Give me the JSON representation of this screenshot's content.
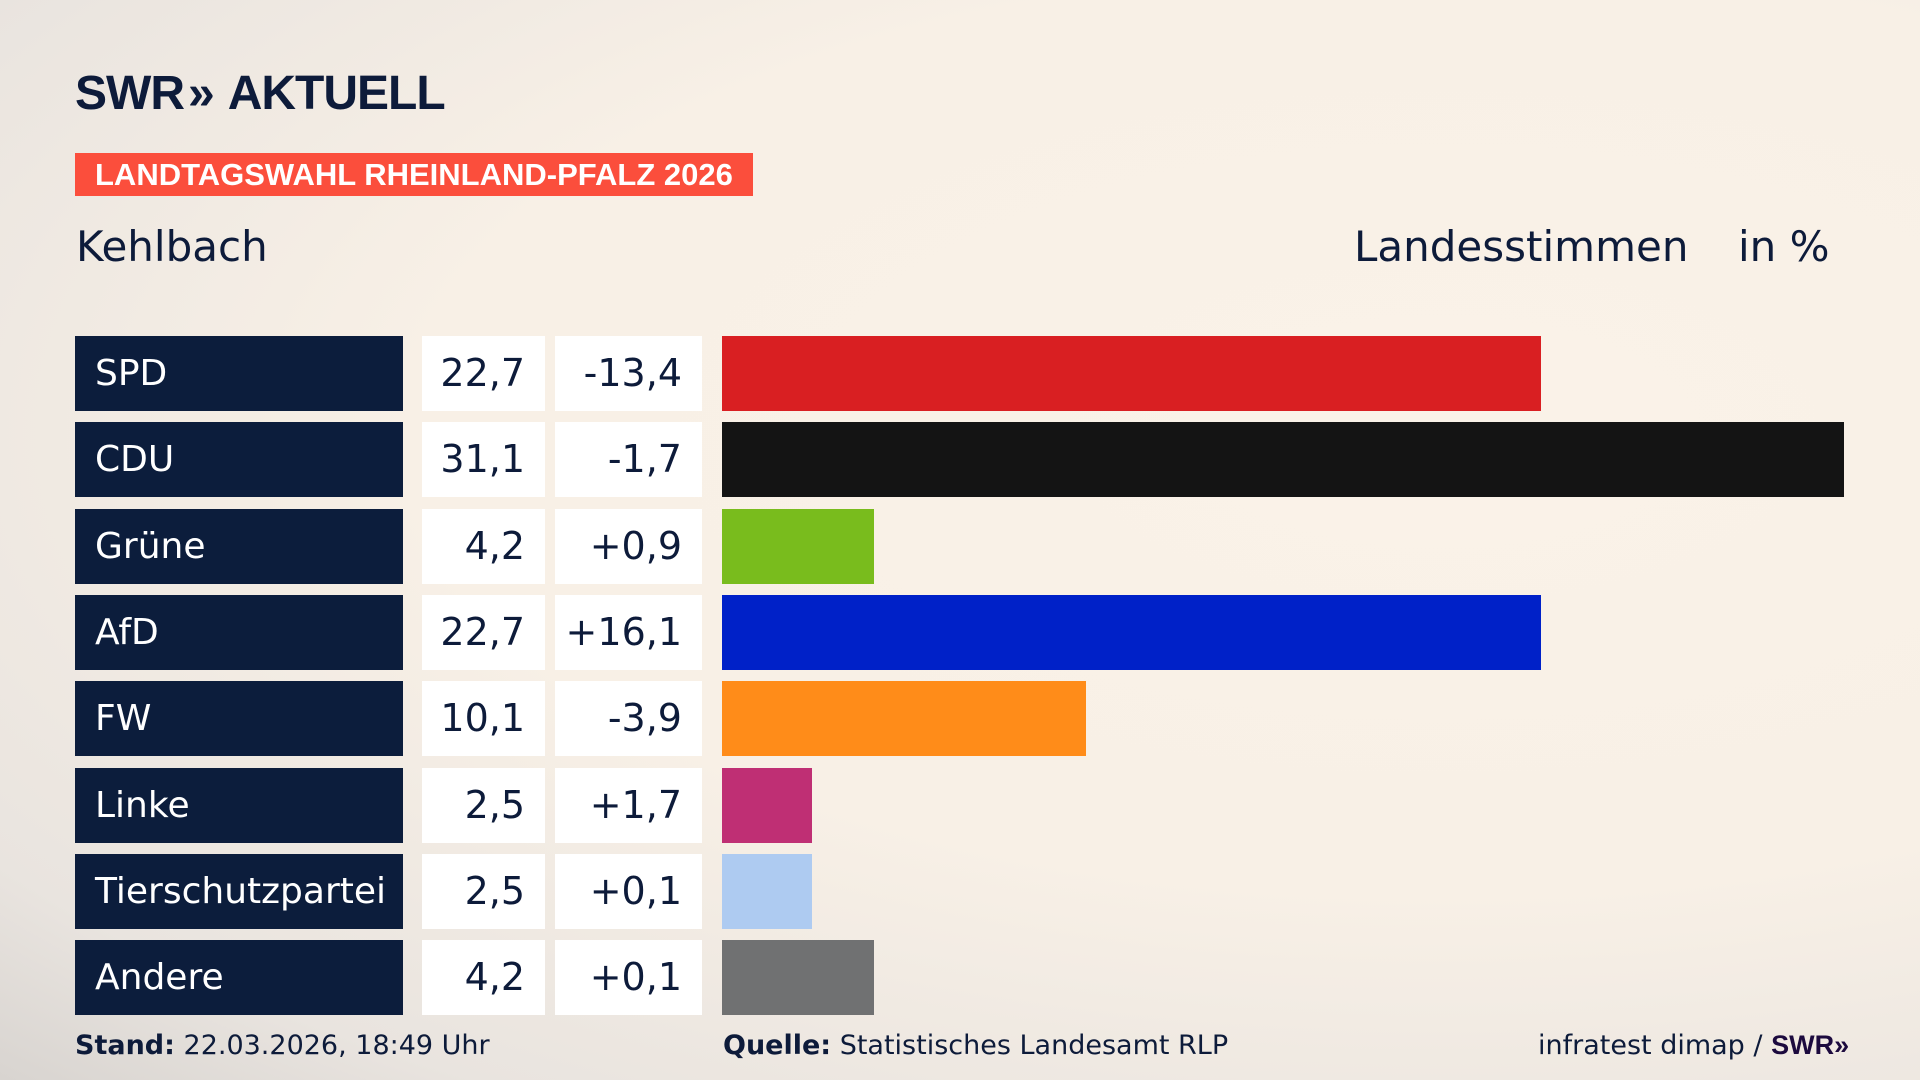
{
  "brand": {
    "logo_text": "SWR",
    "logo_chevrons": "»",
    "logo_suffix": "AKTUELL"
  },
  "banner": "LANDTAGSWAHL RHEINLAND-PFALZ 2026",
  "place": "Kehlbach",
  "header": {
    "votes": "Landesstimmen",
    "unit": "in %"
  },
  "chart_data": {
    "type": "bar",
    "orientation": "horizontal",
    "categories": [
      "SPD",
      "CDU",
      "Grüne",
      "AfD",
      "FW",
      "Linke",
      "Tierschutzpartei",
      "Andere"
    ],
    "values": [
      22.7,
      31.1,
      4.2,
      22.7,
      10.1,
      2.5,
      2.5,
      4.2
    ],
    "value_labels": [
      "22,7",
      "31,1",
      "4,2",
      "22,7",
      "10,1",
      "2,5",
      "2,5",
      "4,2"
    ],
    "changes": [
      "-13,4",
      "-1,7",
      "+0,9",
      "+16,1",
      "-3,9",
      "+1,7",
      "+0,1",
      "+0,1"
    ],
    "colors": [
      "#d91f22",
      "#141414",
      "#79bc1d",
      "#0021c8",
      "#ff8c19",
      "#bf2f74",
      "#aecbf1",
      "#707172"
    ],
    "xlim": [
      0,
      31.1
    ],
    "grid": false
  },
  "footer": {
    "stand_label": "Stand:",
    "stand_value": "22.03.2026, 18:49 Uhr",
    "source_label": "Quelle:",
    "source_value": "Statistisches Landesamt RLP",
    "credit": "infratest dimap /",
    "credit_logo": "SWR»"
  }
}
